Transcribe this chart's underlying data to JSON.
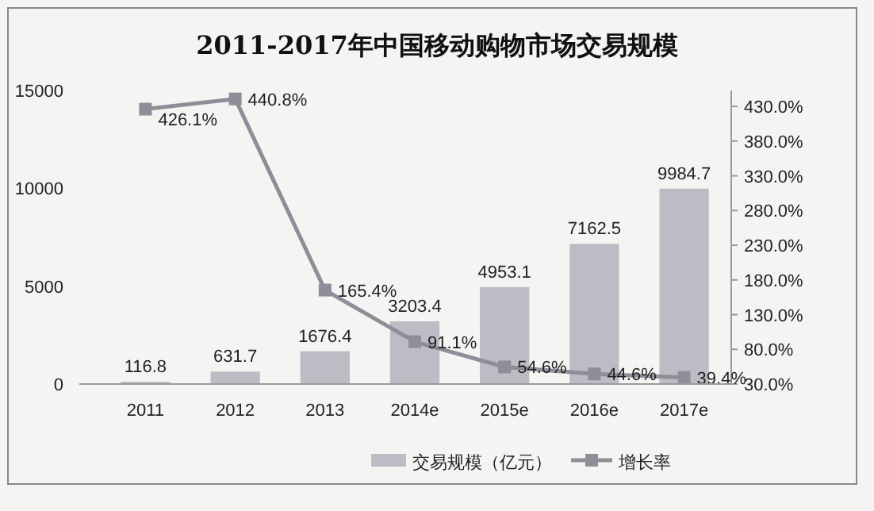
{
  "chart_data": {
    "type": "bar",
    "title": "2011-2017年中国移动购物市场交易规模",
    "categories": [
      "2011",
      "2012",
      "2013",
      "2014e",
      "2015e",
      "2016e",
      "2017e"
    ],
    "series": [
      {
        "name": "交易规模（亿元）",
        "color": "#bcbcc4",
        "values": [
          116.8,
          631.7,
          1676.4,
          3203.4,
          4953.1,
          7162.5,
          9984.7
        ],
        "value_labels": [
          "116.8",
          "631.7",
          "1676.4",
          "3203.4",
          "4953.1",
          "7162.5",
          "9984.7"
        ]
      },
      {
        "name": "增长率",
        "type": "line",
        "axis": "y2",
        "color": "#8e8e98",
        "marker": "square",
        "values": [
          426.1,
          440.8,
          165.4,
          91.1,
          54.6,
          44.6,
          39.4
        ],
        "value_labels": [
          "426.1%",
          "440.8%",
          "165.4%",
          "91.1%",
          "54.6%",
          "44.6%",
          "39.4%"
        ]
      }
    ],
    "ylim": [
      0,
      15000
    ],
    "yticks": [
      0,
      5000,
      10000,
      15000
    ],
    "y2lim": [
      30,
      453
    ],
    "y2ticks": [
      {
        "value": 30,
        "label": "30.0%"
      },
      {
        "value": 80,
        "label": "80.0%"
      },
      {
        "value": 130,
        "label": "130.0%"
      },
      {
        "value": 180,
        "label": "180.0%"
      },
      {
        "value": 230,
        "label": "230.0%"
      },
      {
        "value": 280,
        "label": "280.0%"
      },
      {
        "value": 330,
        "label": "330.0%"
      },
      {
        "value": 380,
        "label": "380.0%"
      },
      {
        "value": 430,
        "label": "430.0%"
      }
    ],
    "grid": false,
    "legend": "bottom"
  }
}
